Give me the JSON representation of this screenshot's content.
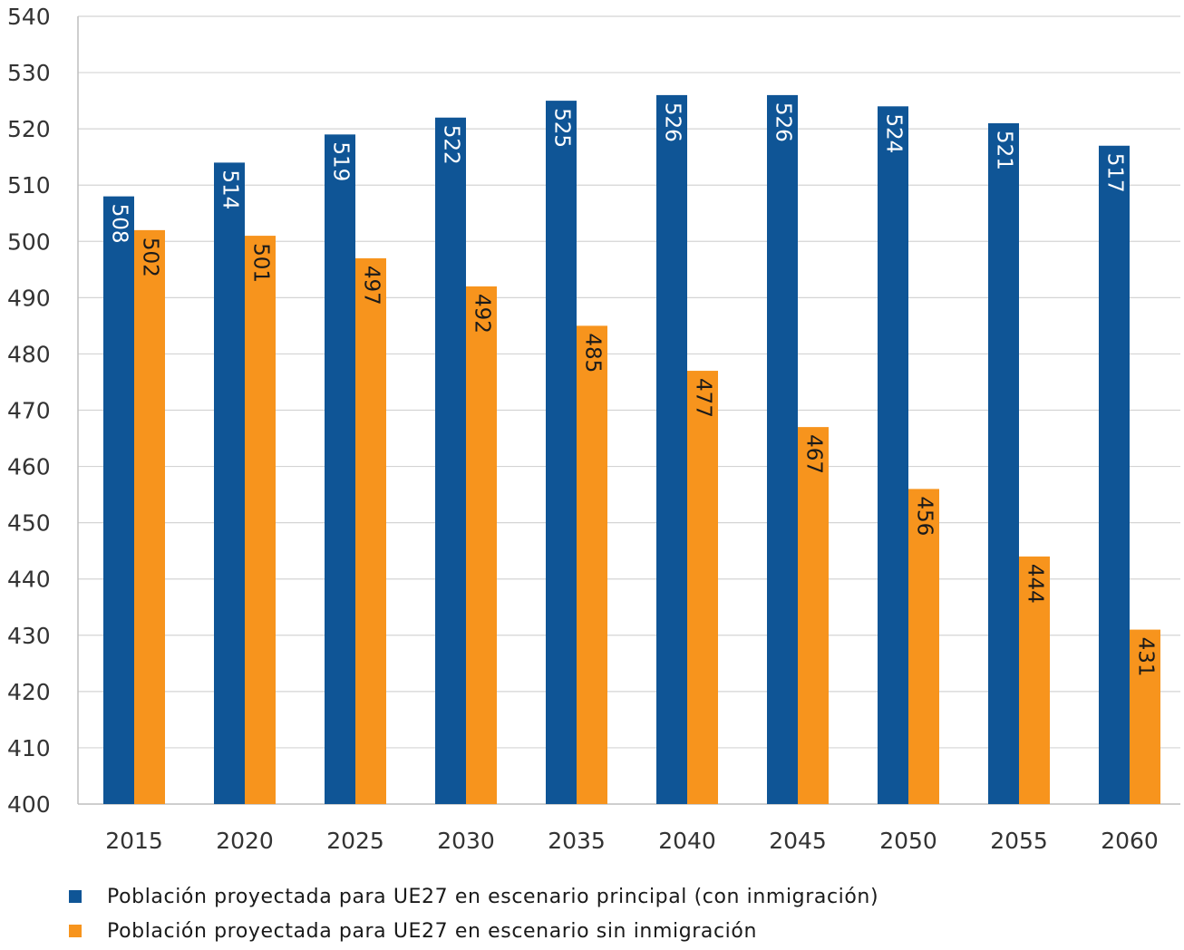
{
  "chart_data": {
    "type": "bar",
    "categories": [
      "2015",
      "2020",
      "2025",
      "2030",
      "2035",
      "2040",
      "2045",
      "2050",
      "2055",
      "2060"
    ],
    "series": [
      {
        "name": "Población proyectada para UE27 en escenario principal (con inmigración)",
        "values": [
          508,
          514,
          519,
          522,
          525,
          526,
          526,
          524,
          521,
          517
        ],
        "color": "#0f5596"
      },
      {
        "name": "Población proyectada para UE27 en escenario sin inmigración",
        "values": [
          502,
          501,
          497,
          492,
          485,
          477,
          467,
          456,
          444,
          431
        ],
        "color": "#f7941d"
      }
    ],
    "ylim": [
      400,
      540
    ],
    "yticks": [
      400,
      410,
      420,
      430,
      440,
      450,
      460,
      470,
      480,
      490,
      500,
      510,
      520,
      530,
      540
    ],
    "grid": true,
    "legend_position": "bottom-left",
    "data_labels": "inside-top-rotated"
  }
}
